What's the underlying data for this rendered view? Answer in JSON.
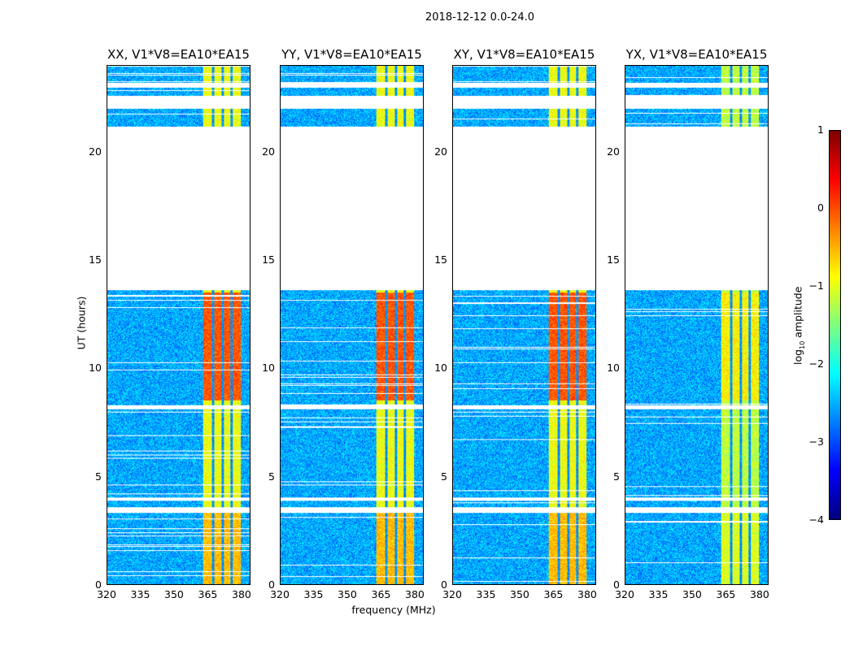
{
  "suptitle": "2018-12-12 0.0-24.0",
  "chart_data": {
    "type": "heatmap",
    "title": "2018-12-12 0.0-24.0",
    "xlabel": "frequency (MHz)",
    "ylabel": "UT (hours)",
    "xlim": [
      320,
      384
    ],
    "ylim": [
      0,
      24
    ],
    "xticks": [
      "320",
      "335",
      "350",
      "365",
      "380"
    ],
    "xtick_values": [
      320,
      335,
      350,
      365,
      380
    ],
    "yticks": [
      "0",
      "5",
      "10",
      "15",
      "20"
    ],
    "ytick_values": [
      0,
      5,
      10,
      15,
      20
    ],
    "panels": [
      {
        "title": "XX, V1*V8=EA10*EA15"
      },
      {
        "title": "YY, V1*V8=EA10*EA15"
      },
      {
        "title": "XY, V1*V8=EA10*EA15"
      },
      {
        "title": "YX, V1*V8=EA10*EA15"
      }
    ],
    "data_time_ranges_hours": [
      [
        0,
        3.3
      ],
      [
        3.55,
        3.85
      ],
      [
        4.0,
        8.1
      ],
      [
        8.3,
        13.6
      ],
      [
        21.2,
        22.0
      ],
      [
        22.6,
        23.0
      ],
      [
        23.2,
        24
      ]
    ],
    "bright_band_mhz": [
      363,
      380
    ],
    "band_gaps_mhz": [
      367.5,
      372,
      376
    ],
    "colorbar": {
      "label": "log10 amplitude",
      "range": [
        -4,
        1
      ],
      "ticks": [
        "1",
        "0",
        "−1",
        "−2",
        "−3",
        "−4"
      ],
      "tick_values": [
        1,
        0,
        -1,
        -2,
        -3,
        -4
      ],
      "colormap": "jet"
    }
  }
}
